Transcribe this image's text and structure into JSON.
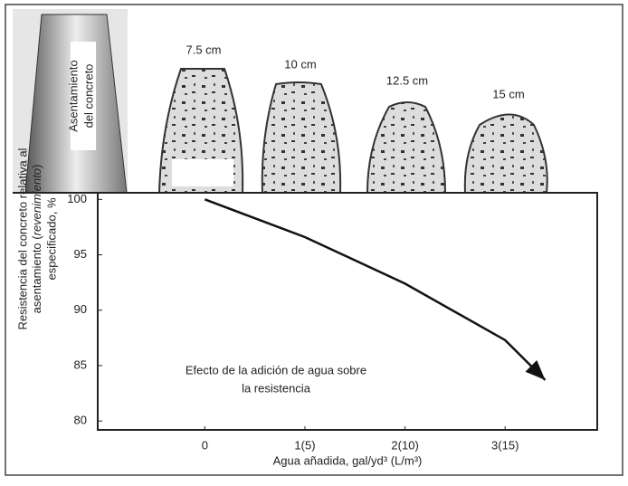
{
  "illustration": {
    "cone_label": [
      "Asentamiento",
      "del concreto"
    ],
    "slumps": [
      "7.5 cm",
      "10 cm",
      "12.5 cm",
      "15 cm"
    ]
  },
  "chart_data": {
    "type": "line",
    "y_label": [
      "Resistencia del concreto relativa al",
      [
        "asentamiento (",
        "revenimiento",
        ")"
      ],
      "especificado, %"
    ],
    "x_label": "Agua añadida, gal/yd³ (L/m³)",
    "annotation": [
      "Efecto de la adición de agua sobre",
      "la resistencia"
    ],
    "x": [
      0,
      1,
      2,
      3,
      3.4
    ],
    "series": [
      {
        "color": "#111111",
        "values": [
          100,
          96.6,
          92.4,
          87.3,
          83.7
        ]
      }
    ],
    "xlim": [
      -1.07,
      3.92
    ],
    "xticks": [
      0,
      {
        "value": 1,
        "label": "1(5)"
      },
      {
        "value": 2,
        "label": "2(10)"
      },
      {
        "value": 3,
        "label": "3(15)"
      }
    ],
    "ylim": [
      79.2,
      100.6
    ],
    "yticks": [
      80,
      85,
      90,
      95,
      100
    ],
    "grid": false,
    "arrow": true
  }
}
